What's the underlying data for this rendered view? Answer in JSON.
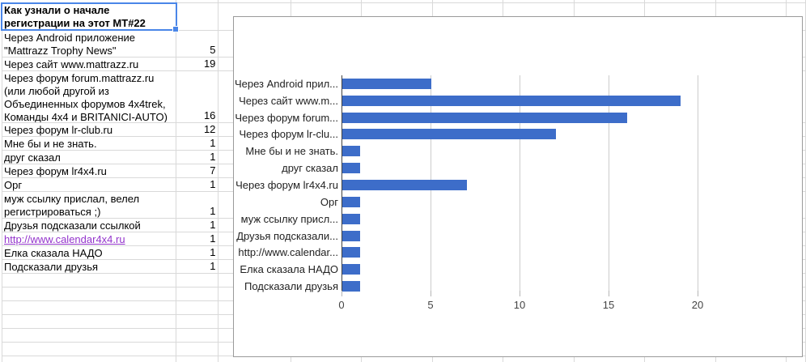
{
  "sheet": {
    "selection_color": "#4a86e8",
    "gridline_color": "#d9d9d9",
    "link_color": "#9333cc",
    "rows": [
      {
        "label": "Как узнали о начале регистрации на этот МТ#22",
        "value": "",
        "bold": true,
        "selected": true
      },
      {
        "label": "Через Android приложение \"Mattrazz Trophy News\"",
        "value": "5"
      },
      {
        "label": "Через сайт www.mattrazz.ru",
        "value": "19"
      },
      {
        "label": "Через форум forum.mattrazz.ru (или любой другой из Объединенных форумов 4x4trek, Команды 4x4 и BRITANICI-AUTO)",
        "value": "16"
      },
      {
        "label": "Через форум lr-club.ru",
        "value": "12"
      },
      {
        "label": "Мне бы и не знать.",
        "value": "1"
      },
      {
        "label": "друг сказал",
        "value": "1"
      },
      {
        "label": "Через форум lr4x4.ru",
        "value": "7"
      },
      {
        "label": "Орг",
        "value": "1"
      },
      {
        "label": "муж ссылку прислал, велел регистрироваться ;)",
        "value": "1"
      },
      {
        "label": "Друзья подсказали ссылкой",
        "value": "1"
      },
      {
        "label": "http://www.calendar4x4.ru",
        "value": "1",
        "link": true
      },
      {
        "label": "Елка сказала НАДО",
        "value": "1"
      },
      {
        "label": "Подсказали друзья",
        "value": "1"
      }
    ]
  },
  "chart_data": {
    "type": "bar",
    "orientation": "horizontal",
    "title": "",
    "xlabel": "",
    "ylabel": "",
    "categories": [
      "Через Android прил...",
      "Через сайт www.m...",
      "Через форум forum...",
      "Через форум lr-clu...",
      "Мне бы и не знать.",
      "друг сказал",
      "Через форум lr4x4.ru",
      "Орг",
      "муж ссылку присл...",
      "Друзья подсказали...",
      "http://www.calendar...",
      "Елка сказала НАДО",
      "Подсказали друзья"
    ],
    "values": [
      5,
      19,
      16,
      12,
      1,
      1,
      7,
      1,
      1,
      1,
      1,
      1,
      1
    ],
    "x_ticks": [
      "0",
      "5",
      "10",
      "15",
      "20"
    ],
    "xlim": [
      0,
      23
    ],
    "grid": true,
    "legend": "none",
    "bar_color": "#3d6dc9"
  }
}
